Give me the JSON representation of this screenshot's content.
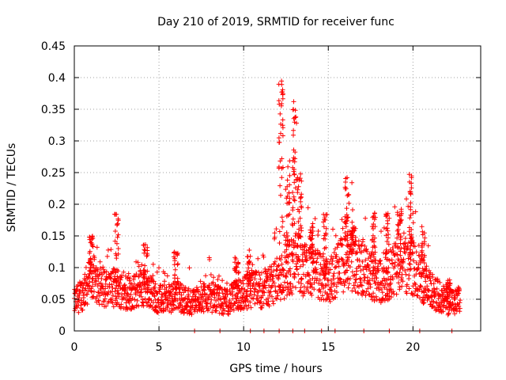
{
  "chart_data": {
    "type": "scatter",
    "title": "Day 210 of 2019, SRMTID for receiver func",
    "xlabel": "GPS time / hours",
    "ylabel": "SRMTID / TECUs",
    "xlim": [
      0,
      24
    ],
    "ylim": [
      0,
      0.45
    ],
    "xticks": [
      0,
      5,
      10,
      15,
      20
    ],
    "yticks": [
      0,
      0.05,
      0.1,
      0.15,
      0.2,
      0.25,
      0.3,
      0.35,
      0.4,
      0.45
    ],
    "xtick_labels": [
      "0",
      "5",
      "10",
      "15",
      "20"
    ],
    "ytick_labels": [
      "0",
      "0.05",
      "0.1",
      "0.15",
      "0.2",
      "0.25",
      "0.3",
      "0.35",
      "0.4",
      "0.45"
    ],
    "grid": true,
    "marker": "+",
    "color": "#ff0000",
    "series": [
      {
        "name": "SRMTID",
        "points_hours_tecu_approx": "dense cloud of ~2000 points, values estimated from figure",
        "baseline_profile": [
          [
            0.0,
            0.045
          ],
          [
            0.5,
            0.06
          ],
          [
            1.0,
            0.085
          ],
          [
            1.5,
            0.075
          ],
          [
            2.0,
            0.065
          ],
          [
            2.5,
            0.07
          ],
          [
            3.0,
            0.06
          ],
          [
            3.5,
            0.06
          ],
          [
            4.0,
            0.07
          ],
          [
            4.5,
            0.06
          ],
          [
            5.0,
            0.05
          ],
          [
            5.5,
            0.05
          ],
          [
            6.0,
            0.055
          ],
          [
            6.5,
            0.05
          ],
          [
            7.0,
            0.045
          ],
          [
            7.5,
            0.055
          ],
          [
            8.0,
            0.055
          ],
          [
            8.5,
            0.05
          ],
          [
            9.0,
            0.045
          ],
          [
            9.5,
            0.055
          ],
          [
            10.0,
            0.06
          ],
          [
            10.5,
            0.065
          ],
          [
            11.0,
            0.065
          ],
          [
            11.5,
            0.07
          ],
          [
            12.0,
            0.08
          ],
          [
            12.5,
            0.095
          ],
          [
            13.0,
            0.11
          ],
          [
            13.5,
            0.1
          ],
          [
            14.0,
            0.095
          ],
          [
            14.5,
            0.085
          ],
          [
            15.0,
            0.08
          ],
          [
            15.5,
            0.095
          ],
          [
            16.0,
            0.11
          ],
          [
            16.5,
            0.115
          ],
          [
            17.0,
            0.1
          ],
          [
            17.5,
            0.09
          ],
          [
            18.0,
            0.08
          ],
          [
            18.5,
            0.085
          ],
          [
            19.0,
            0.1
          ],
          [
            19.5,
            0.11
          ],
          [
            20.0,
            0.1
          ],
          [
            20.5,
            0.08
          ],
          [
            21.0,
            0.065
          ],
          [
            21.5,
            0.055
          ],
          [
            22.0,
            0.045
          ],
          [
            22.5,
            0.045
          ],
          [
            22.8,
            0.05
          ]
        ],
        "spikes": [
          {
            "x": 1.0,
            "ymax": 0.15
          },
          {
            "x": 2.5,
            "ymax": 0.19
          },
          {
            "x": 4.2,
            "ymax": 0.145
          },
          {
            "x": 6.0,
            "ymax": 0.125
          },
          {
            "x": 9.6,
            "ymax": 0.12
          },
          {
            "x": 10.3,
            "ymax": 0.12
          },
          {
            "x": 12.2,
            "ymax": 0.41
          },
          {
            "x": 12.6,
            "ymax": 0.27
          },
          {
            "x": 13.0,
            "ymax": 0.37
          },
          {
            "x": 13.3,
            "ymax": 0.25
          },
          {
            "x": 14.0,
            "ymax": 0.17
          },
          {
            "x": 14.8,
            "ymax": 0.185
          },
          {
            "x": 16.1,
            "ymax": 0.25
          },
          {
            "x": 16.5,
            "ymax": 0.175
          },
          {
            "x": 17.7,
            "ymax": 0.19
          },
          {
            "x": 18.5,
            "ymax": 0.19
          },
          {
            "x": 19.2,
            "ymax": 0.195
          },
          {
            "x": 19.9,
            "ymax": 0.25
          },
          {
            "x": 20.6,
            "ymax": 0.165
          },
          {
            "x": 22.1,
            "ymax": 0.085
          }
        ],
        "zero_points_x": [
          7.1,
          8.6,
          10.4,
          11.2,
          12.1,
          12.9,
          13.6,
          14.6,
          15.4,
          17.1,
          18.6,
          20.4,
          22.3
        ]
      }
    ]
  }
}
